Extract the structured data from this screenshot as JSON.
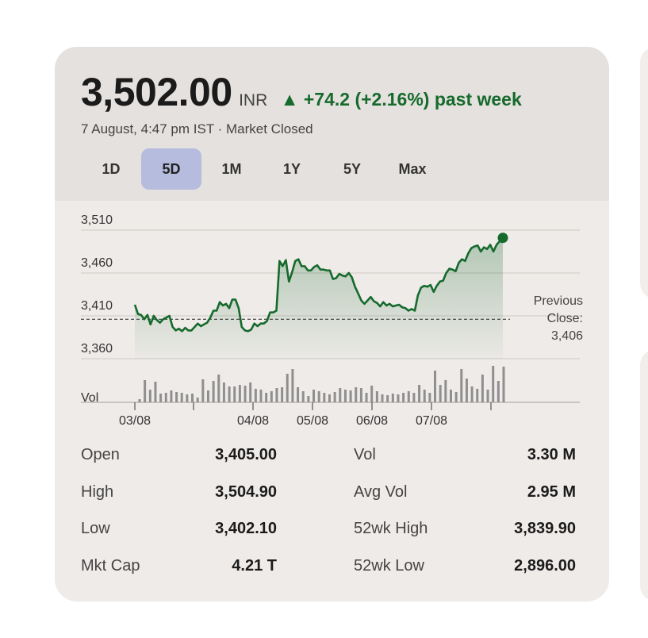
{
  "quote": {
    "price": "3,502.00",
    "currency": "INR",
    "change": "▲ +74.2 (+2.16%) past week",
    "status": "7 August, 4:47 pm IST · Market Closed",
    "accent_color": "#156a2c"
  },
  "ranges": [
    {
      "label": "1D",
      "active": false
    },
    {
      "label": "5D",
      "active": true
    },
    {
      "label": "1M",
      "active": false
    },
    {
      "label": "1Y",
      "active": false
    },
    {
      "label": "5Y",
      "active": false
    },
    {
      "label": "Max",
      "active": false
    }
  ],
  "chart_data": {
    "type": "line",
    "xlabel": "",
    "ylabel": "",
    "y_ticks": [
      "3,510",
      "3,460",
      "3,410",
      "3,360"
    ],
    "ylim": [
      3340,
      3520
    ],
    "x_ticks": [
      "03/08",
      "04/08",
      "05/08",
      "06/08",
      "07/08"
    ],
    "grid": true,
    "previous_close": 3406,
    "previous_close_label": [
      "Previous",
      "Close:",
      "3,406"
    ],
    "volume_label": "Vol",
    "series": [
      {
        "values": [
          3423,
          3412,
          3411,
          3406,
          3411,
          3400,
          3410,
          3405,
          3402,
          3406,
          3408,
          3410,
          3397,
          3393,
          3395,
          3392,
          3396,
          3393,
          3393,
          3397,
          3401,
          3398,
          3400,
          3402,
          3408,
          3416,
          3416,
          3426,
          3422,
          3424,
          3419,
          3429,
          3429,
          3419,
          3397,
          3393,
          3392,
          3394,
          3401,
          3398,
          3401,
          3401,
          3404,
          3414,
          3414,
          3416,
          3474,
          3468,
          3475,
          3450,
          3461,
          3474,
          3476,
          3468,
          3468,
          3463,
          3463,
          3467,
          3469,
          3464,
          3464,
          3463,
          3463,
          3453,
          3454,
          3459,
          3457,
          3456,
          3460,
          3455,
          3444,
          3436,
          3428,
          3424,
          3428,
          3432,
          3427,
          3425,
          3421,
          3426,
          3422,
          3424,
          3421,
          3422,
          3423,
          3420,
          3419,
          3416,
          3418,
          3416,
          3434,
          3443,
          3445,
          3444,
          3446,
          3438,
          3445,
          3450,
          3451,
          3460,
          3465,
          3464,
          3462,
          3472,
          3476,
          3474,
          3483,
          3489,
          3491,
          3492,
          3485,
          3490,
          3488,
          3493,
          3485,
          3493,
          3497,
          3501
        ],
        "color": "#156a2c"
      }
    ],
    "volume": [
      4,
      28,
      16,
      26,
      11,
      12,
      15,
      13,
      12,
      10,
      11,
      6,
      29,
      15,
      27,
      35,
      25,
      20,
      20,
      22,
      21,
      25,
      17,
      16,
      12,
      14,
      18,
      19,
      36,
      42,
      19,
      14,
      8,
      16,
      14,
      12,
      10,
      13,
      18,
      16,
      15,
      19,
      18,
      12,
      21,
      14,
      10,
      9,
      11,
      10,
      12,
      14,
      12,
      22,
      16,
      12,
      40,
      22,
      28,
      16,
      13,
      42,
      30,
      20,
      17,
      35,
      16,
      46,
      27,
      45
    ]
  },
  "stats": [
    {
      "label": "Open",
      "value": "3,405.00"
    },
    {
      "label": "High",
      "value": "3,504.90"
    },
    {
      "label": "Low",
      "value": "3,402.10"
    },
    {
      "label": "Mkt Cap",
      "value": "4.21 T"
    },
    {
      "label": "Vol",
      "value": "3.30 M"
    },
    {
      "label": "Avg Vol",
      "value": "2.95 M"
    },
    {
      "label": "52wk High",
      "value": "3,839.90"
    },
    {
      "label": "52wk Low",
      "value": "2,896.00"
    }
  ]
}
